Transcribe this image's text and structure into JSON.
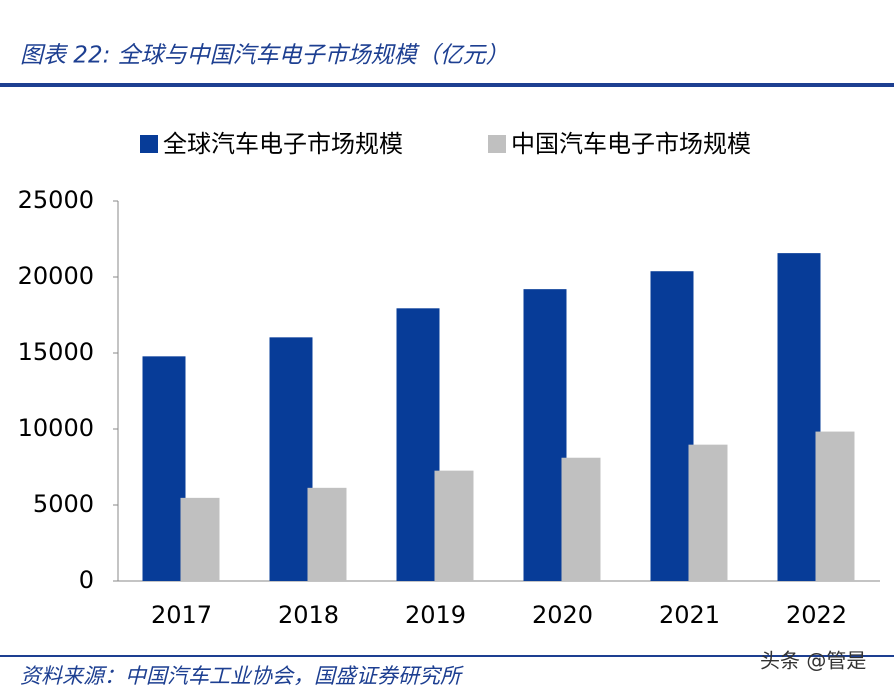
{
  "header": {
    "title": "图表 22: 全球与中国汽车电子市场规模（亿元）"
  },
  "chart_data": {
    "type": "bar",
    "categories": [
      "2017",
      "2018",
      "2019",
      "2020",
      "2021",
      "2022"
    ],
    "series": [
      {
        "name": "全球汽车电子市场规模",
        "color": "#073c98",
        "values": [
          14780,
          16030,
          17940,
          19200,
          20380,
          21570
        ]
      },
      {
        "name": "中国汽车电子市场规模",
        "color": "#c0c0c0",
        "values": [
          5470,
          6130,
          7260,
          8110,
          8970,
          9830
        ]
      }
    ],
    "ylim": [
      0,
      25000
    ],
    "yticks": [
      0,
      5000,
      10000,
      15000,
      20000,
      25000
    ],
    "grid": false,
    "legend": "top"
  },
  "footer": {
    "source": "资料来源：中国汽车工业协会，国盛证券研究所",
    "watermark": "头条 @管是"
  }
}
